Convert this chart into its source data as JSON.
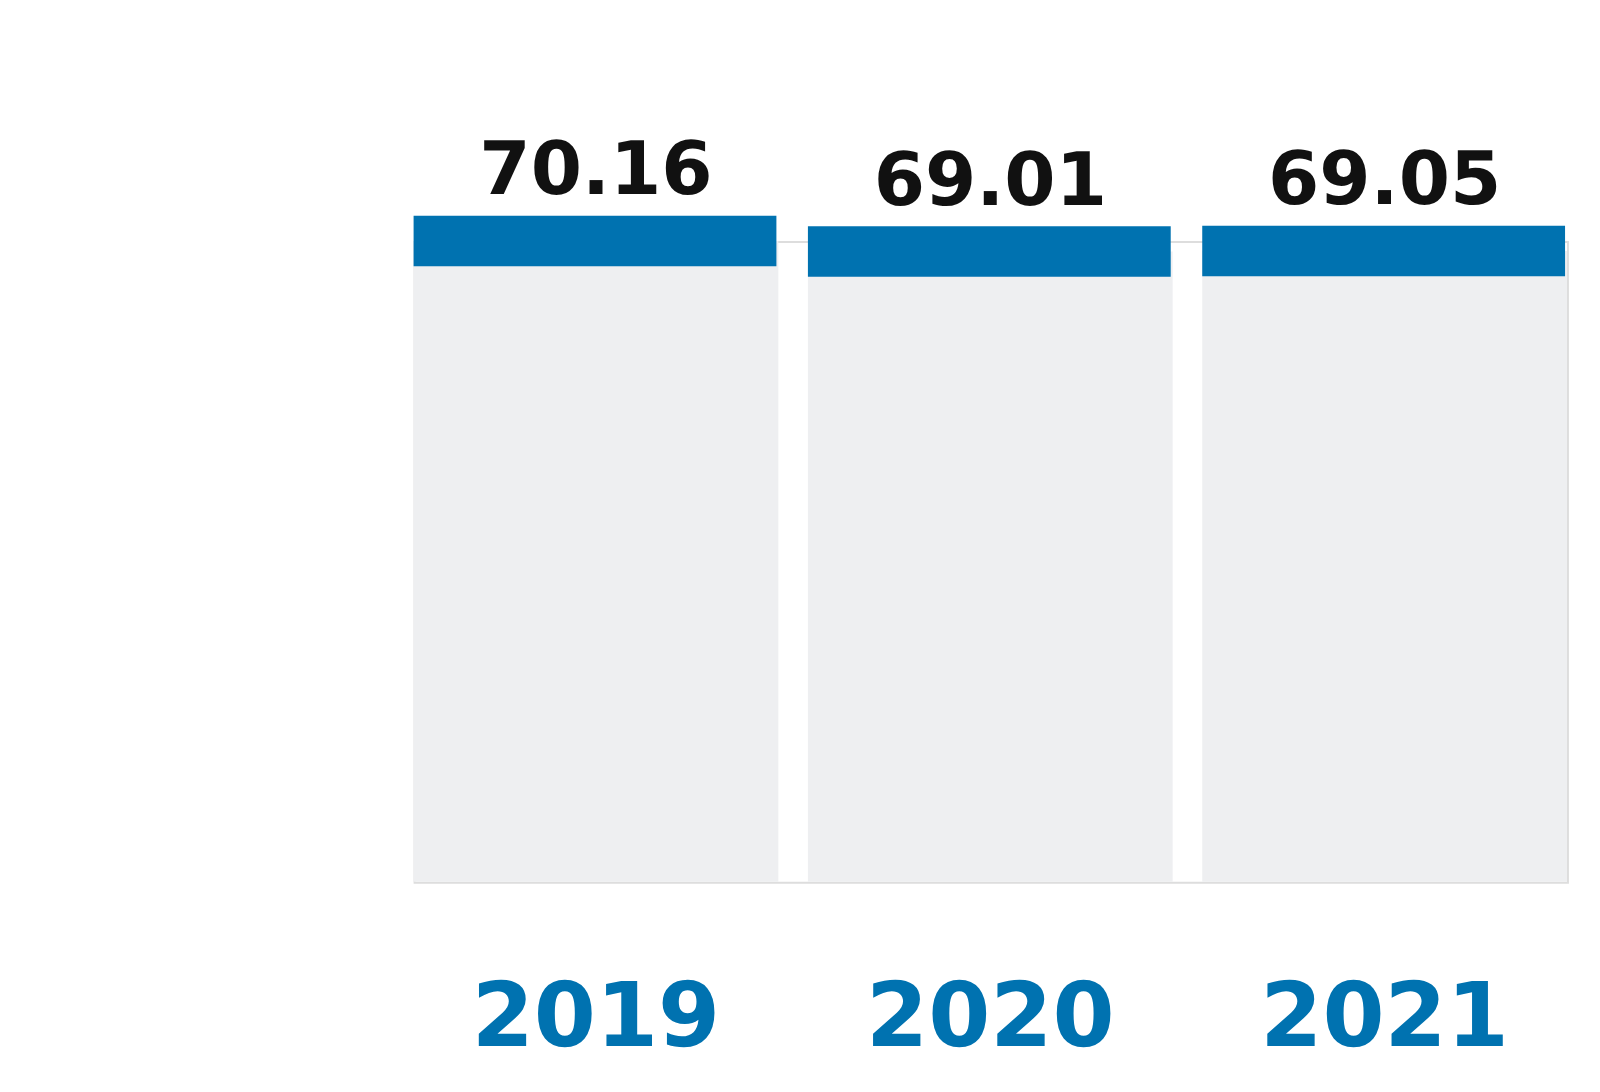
{
  "chart_data": {
    "type": "bar",
    "categories": [
      "2019",
      "2020",
      "2021"
    ],
    "values": [
      70.16,
      69.01,
      69.05
    ],
    "color": "#eeeff1",
    "data_labels": true,
    "tick_labels": "x",
    "grid": false
  }
}
